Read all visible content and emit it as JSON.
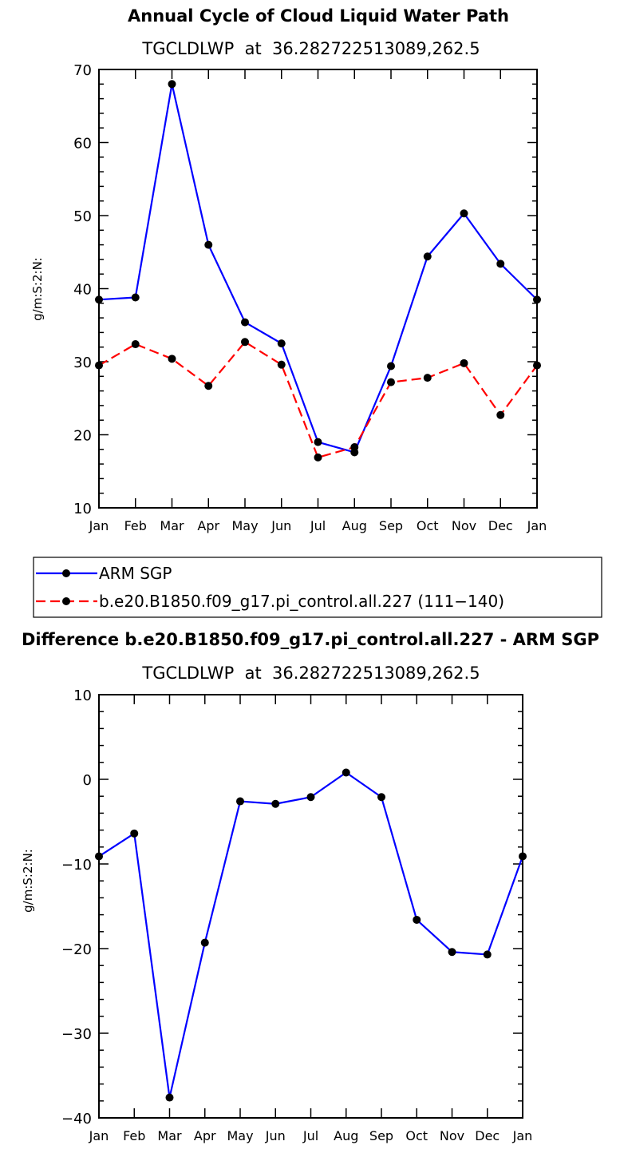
{
  "chart_data": [
    {
      "type": "line",
      "title": "Annual Cycle of Cloud Liquid Water Path",
      "subtitle": "TGCLDLWP  at  36.282722513089,262.5",
      "xlabel": "",
      "ylabel": "g/m:S:2:N:",
      "categories": [
        "Jan",
        "Feb",
        "Mar",
        "Apr",
        "May",
        "Jun",
        "Jul",
        "Aug",
        "Sep",
        "Oct",
        "Nov",
        "Dec",
        "Jan"
      ],
      "ylim": [
        10,
        70
      ],
      "yticks": [
        10,
        20,
        30,
        40,
        50,
        60,
        70
      ],
      "grid": false,
      "legend": "below",
      "series": [
        {
          "name": "ARM SGP",
          "color": "#0000ff",
          "dash": "solid",
          "values": [
            38.5,
            38.8,
            68.0,
            46.0,
            35.4,
            32.5,
            19.0,
            17.6,
            29.4,
            44.4,
            50.3,
            43.4,
            38.5
          ]
        },
        {
          "name": "b.e20.B1850.f09_g17.pi_control.all.227 (111−140)",
          "color": "#ff0000",
          "dash": "dashed",
          "values": [
            29.5,
            32.4,
            30.4,
            26.7,
            32.7,
            29.6,
            16.9,
            18.3,
            27.2,
            27.8,
            29.8,
            22.7,
            29.5
          ]
        }
      ]
    },
    {
      "type": "line",
      "title": "Difference b.e20.B1850.f09_g17.pi_control.all.227 - ARM SGP",
      "subtitle": "TGCLDLWP  at  36.282722513089,262.5",
      "xlabel": "",
      "ylabel": "g/m:S:2:N:",
      "categories": [
        "Jan",
        "Feb",
        "Mar",
        "Apr",
        "May",
        "Jun",
        "Jul",
        "Aug",
        "Sep",
        "Oct",
        "Nov",
        "Dec",
        "Jan"
      ],
      "ylim": [
        -40,
        10
      ],
      "yticks": [
        -40,
        -30,
        -20,
        -10,
        0,
        10
      ],
      "ytick_labels": [
        "−40",
        "−30",
        "−20",
        "−10",
        "0",
        "10"
      ],
      "grid": false,
      "series": [
        {
          "color": "#0000ff",
          "dash": "solid",
          "values": [
            -9.1,
            -6.4,
            -37.6,
            -19.3,
            -2.6,
            -2.9,
            -2.1,
            0.8,
            -2.1,
            -16.6,
            -20.4,
            -20.7,
            -9.1
          ]
        }
      ]
    }
  ]
}
